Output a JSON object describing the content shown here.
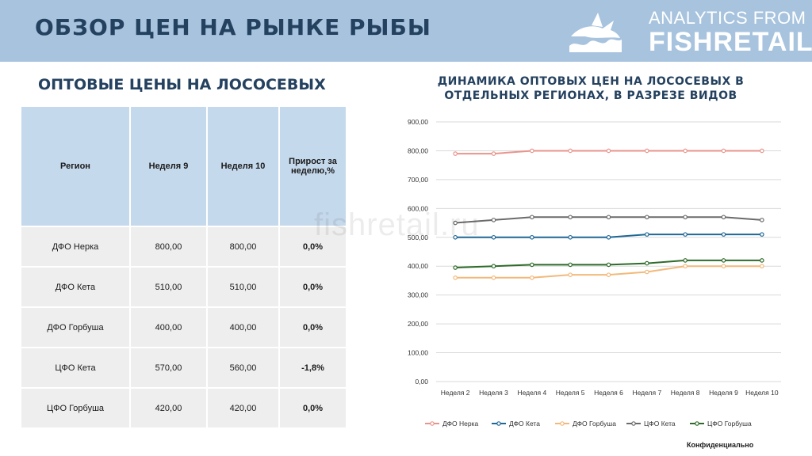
{
  "header": {
    "title": "ОБЗОР ЦЕН НА РЫНКЕ РЫБЫ",
    "brand_line1": "ANALYTICS FROM",
    "brand_line2": "FISHRETAIL"
  },
  "left_title": "ОПТОВЫЕ ЦЕНЫ НА ЛОСОСЕВЫХ",
  "table": {
    "headers": [
      "Регион",
      "Неделя 9",
      "Неделя 10",
      "Прирост за неделю,%"
    ],
    "rows": [
      [
        "ДФО Нерка",
        "800,00",
        "800,00",
        "0,0%"
      ],
      [
        "ДФО Кета",
        "510,00",
        "510,00",
        "0,0%"
      ],
      [
        "ДФО Горбуша",
        "400,00",
        "400,00",
        "0,0%"
      ],
      [
        "ЦФО Кета",
        "570,00",
        "560,00",
        "-1,8%"
      ],
      [
        "ЦФО Горбуша",
        "420,00",
        "420,00",
        "0,0%"
      ]
    ]
  },
  "watermark": "fishretail.ru",
  "footer": "Конфиденциально",
  "chart_data": {
    "type": "line",
    "title": "ДИНАМИКА ОПТОВЫХ ЦЕН НА ЛОСОСЕВЫХ В ОТДЕЛЬНЫХ РЕГИОНАХ, В РАЗРЕЗЕ ВИДОВ",
    "categories": [
      "Неделя 2",
      "Неделя 3",
      "Неделя 4",
      "Неделя 5",
      "Неделя 6",
      "Неделя 7",
      "Неделя 8",
      "Неделя 9",
      "Неделя 10"
    ],
    "ylim": [
      0,
      900
    ],
    "yticks": [
      "0,00",
      "100,00",
      "200,00",
      "300,00",
      "400,00",
      "500,00",
      "600,00",
      "700,00",
      "800,00",
      "900,00"
    ],
    "grid": true,
    "legend_position": "bottom",
    "series": [
      {
        "name": "ДФО Нерка",
        "color": "#e8948c",
        "values": [
          790,
          790,
          800,
          800,
          800,
          800,
          800,
          800,
          800
        ]
      },
      {
        "name": "ДФО Кета",
        "color": "#1f6796",
        "values": [
          500,
          500,
          500,
          500,
          500,
          510,
          510,
          510,
          510
        ]
      },
      {
        "name": "ДФО Горбуша",
        "color": "#f2b97a",
        "values": [
          360,
          360,
          360,
          370,
          370,
          380,
          400,
          400,
          400
        ]
      },
      {
        "name": "ЦФО Кета",
        "color": "#6b6b6b",
        "values": [
          550,
          560,
          570,
          570,
          570,
          570,
          570,
          570,
          560
        ]
      },
      {
        "name": "ЦФО Горбуша",
        "color": "#2e6b2a",
        "values": [
          395,
          400,
          405,
          405,
          405,
          410,
          420,
          420,
          420
        ]
      }
    ]
  }
}
